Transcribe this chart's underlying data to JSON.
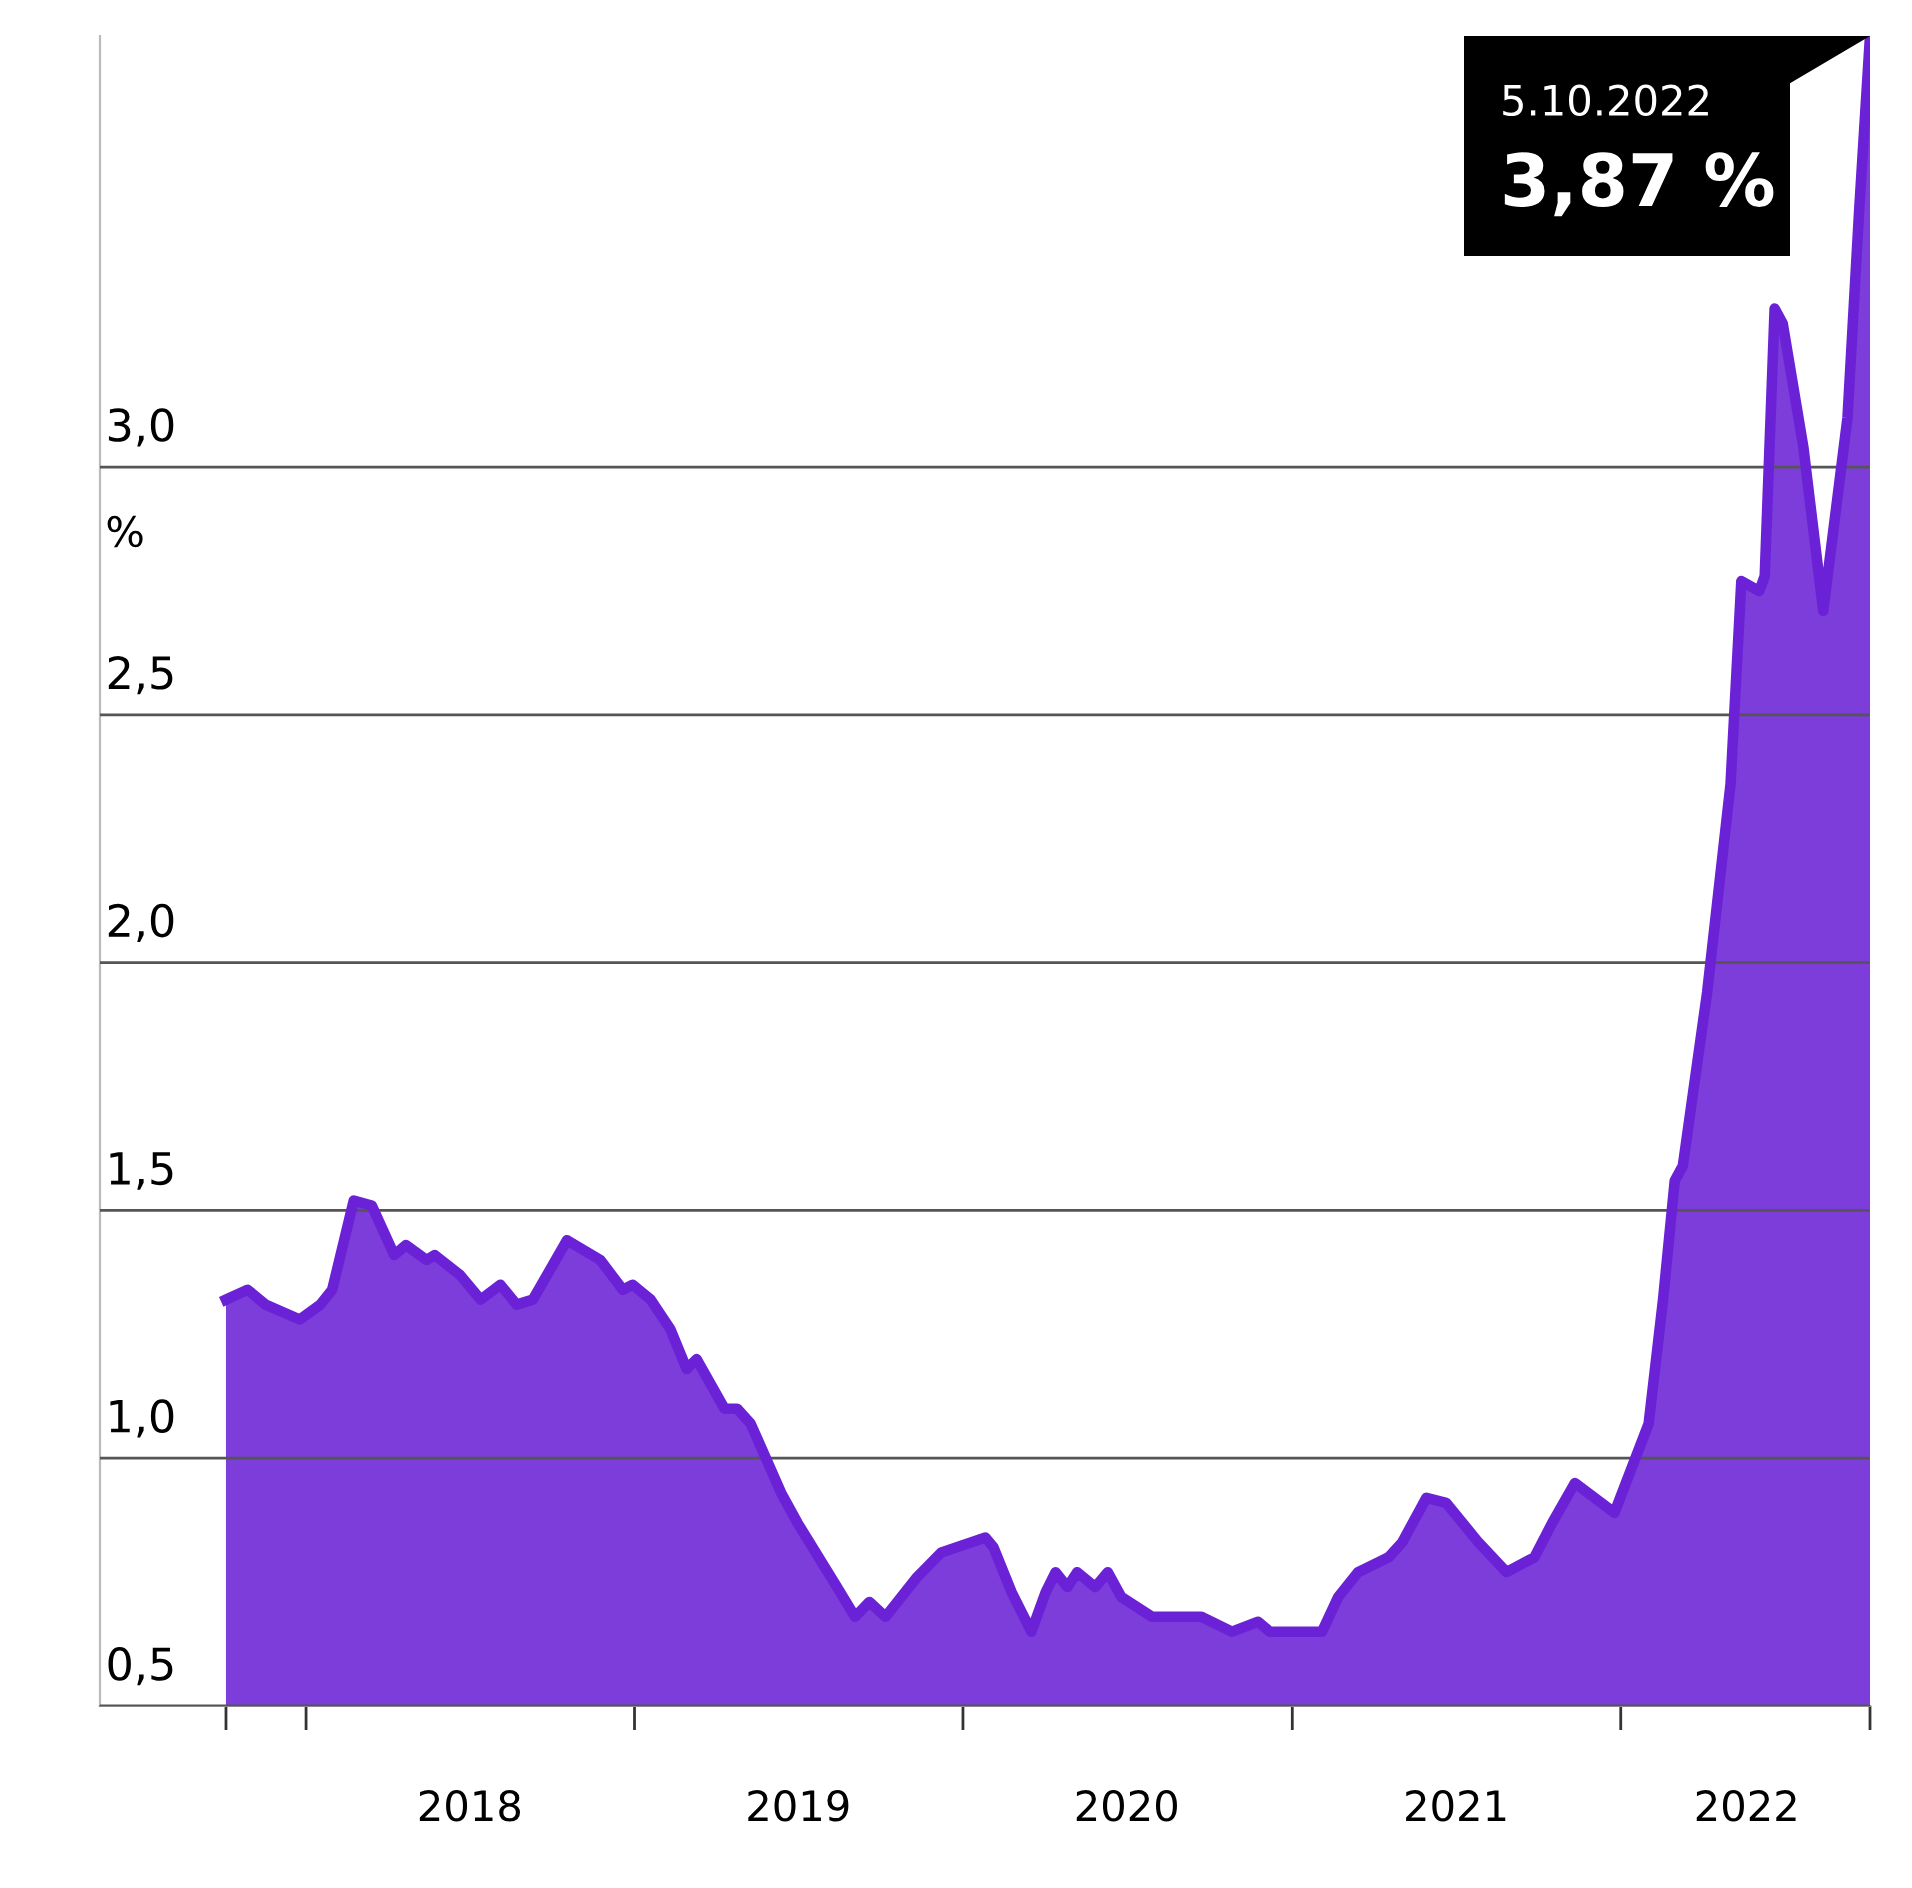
{
  "chart_data": {
    "type": "area",
    "ylabel": "%",
    "x": [
      "2017-10-04",
      "2017-10-28",
      "2017-11-17",
      "2017-12-25",
      "2018-01-17",
      "2018-01-30",
      "2018-02-23",
      "2018-03-15",
      "2018-04-09",
      "2018-04-22",
      "2018-05-15",
      "2018-05-24",
      "2018-06-21",
      "2018-07-14",
      "2018-08-05",
      "2018-08-23",
      "2018-09-10",
      "2018-10-18",
      "2018-11-24",
      "2018-12-19",
      "2018-12-30",
      "2019-01-19",
      "2019-02-10",
      "2019-02-28",
      "2019-03-11",
      "2019-04-11",
      "2019-04-25",
      "2019-05-10",
      "2019-06-13",
      "2019-07-01",
      "2019-08-14",
      "2019-09-03",
      "2019-09-19",
      "2019-10-07",
      "2019-11-11",
      "2019-12-08",
      "2020-01-26",
      "2020-02-04",
      "2020-02-24",
      "2020-03-17",
      "2020-04-02",
      "2020-04-13",
      "2020-04-26",
      "2020-05-07",
      "2020-05-27",
      "2020-06-10",
      "2020-06-25",
      "2020-07-29",
      "2020-09-22",
      "2020-10-26",
      "2020-11-24",
      "2020-12-07",
      "2021-02-03",
      "2021-02-21",
      "2021-03-15",
      "2021-04-18",
      "2021-05-03",
      "2021-05-30",
      "2021-06-21",
      "2021-07-27",
      "2021-08-27",
      "2021-09-27",
      "2021-10-17",
      "2021-11-11",
      "2021-12-25",
      "2022-02-01",
      "2022-02-17",
      "2022-03-02",
      "2022-03-11",
      "2022-04-07",
      "2022-05-03",
      "2022-05-15",
      "2022-06-04",
      "2022-06-10",
      "2022-06-21",
      "2022-06-30",
      "2022-07-23",
      "2022-08-14",
      "2022-09-10",
      "2022-09-23",
      "2022-10-05"
    ],
    "series": [
      {
        "color": "#6b22d6",
        "values": [
          1.32,
          1.34,
          1.31,
          1.28,
          1.31,
          1.34,
          1.52,
          1.51,
          1.41,
          1.43,
          1.4,
          1.41,
          1.37,
          1.32,
          1.35,
          1.31,
          1.32,
          1.44,
          1.4,
          1.34,
          1.35,
          1.32,
          1.26,
          1.18,
          1.2,
          1.1,
          1.1,
          1.07,
          0.93,
          0.87,
          0.74,
          0.68,
          0.71,
          0.68,
          0.76,
          0.81,
          0.84,
          0.82,
          0.73,
          0.65,
          0.73,
          0.77,
          0.74,
          0.77,
          0.74,
          0.77,
          0.72,
          0.68,
          0.68,
          0.65,
          0.67,
          0.65,
          0.65,
          0.72,
          0.77,
          0.8,
          0.83,
          0.92,
          0.91,
          0.83,
          0.77,
          0.8,
          0.87,
          0.95,
          0.89,
          1.07,
          1.32,
          1.56,
          1.59,
          1.94,
          2.36,
          2.77,
          2.75,
          2.78,
          3.32,
          3.29,
          3.04,
          2.71,
          3.1,
          3.52,
          3.87
        ]
      }
    ],
    "xlim": [
      "2017-05-17",
      "2022-10-05"
    ],
    "xticks": [
      {
        "value": "2017-10-04",
        "label": null
      },
      {
        "value": "2018-01-01",
        "label": null
      },
      {
        "value": "2019-01-01",
        "label": null
      },
      {
        "value": "2020-01-01",
        "label": null
      },
      {
        "value": "2021-01-01",
        "label": null
      },
      {
        "value": "2022-01-01",
        "label": null
      },
      {
        "value": "2022-10-05",
        "label": null
      },
      {
        "value": "2018-07-02",
        "label": "2018"
      },
      {
        "value": "2019-07-02",
        "label": "2019"
      },
      {
        "value": "2020-07-01",
        "label": "2020"
      },
      {
        "value": "2021-07-02",
        "label": "2021"
      },
      {
        "value": "2022-05-21",
        "label": "2022"
      }
    ],
    "ylim": [
      0.5,
      3.87
    ],
    "yticks": [
      {
        "value": 0.5,
        "label": "0,5"
      },
      {
        "value": 1.0,
        "label": "1,0"
      },
      {
        "value": 1.5,
        "label": "1,5"
      },
      {
        "value": 2.0,
        "label": "2,0"
      },
      {
        "value": 2.5,
        "label": "2,5"
      },
      {
        "value": 3.0,
        "label": "3,0"
      }
    ],
    "grid": "y",
    "annotations": [
      "5.10.2022",
      {
        "text": "3,87 %",
        "x": "2022-10-05",
        "y": 3.87
      }
    ]
  }
}
